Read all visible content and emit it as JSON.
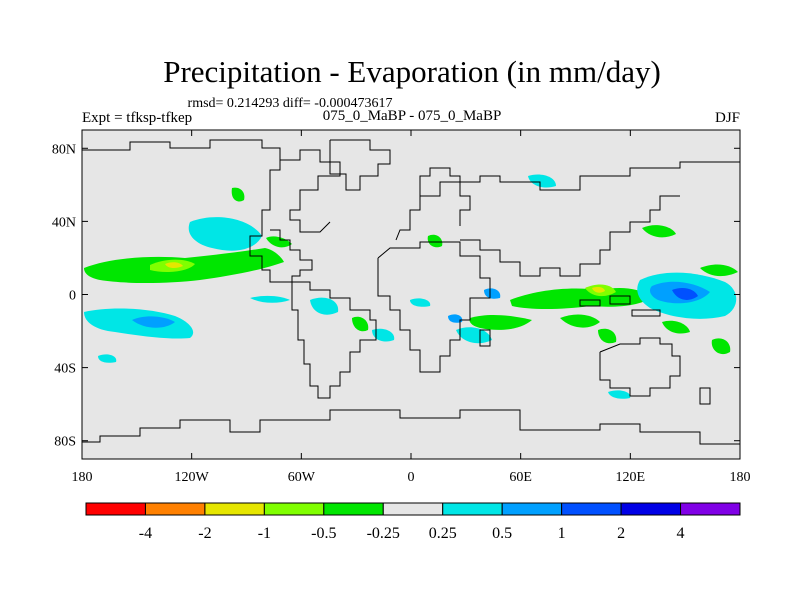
{
  "title": "Precipitation - Evaporation (in mm/day)",
  "stats_line": "rmsd= 0.214293 diff= -0.000473617",
  "left_label": "Expt = tfksp-tfkep",
  "center_label": "075_0_MaBP - 075_0_MaBP",
  "right_label": "DJF",
  "map": {
    "projection": "cylindrical-equidistant",
    "lon_range": [
      -180,
      180
    ],
    "lat_range": [
      -90,
      90
    ],
    "land_fill": "#e6e6e6",
    "coastline_color": "#000000",
    "x_ticks": [
      {
        "lon": -180,
        "label": "180"
      },
      {
        "lon": -120,
        "label": "120W"
      },
      {
        "lon": -60,
        "label": "60W"
      },
      {
        "lon": 0,
        "label": "0"
      },
      {
        "lon": 60,
        "label": "60E"
      },
      {
        "lon": 120,
        "label": "120E"
      },
      {
        "lon": 180,
        "label": "180"
      }
    ],
    "y_ticks": [
      {
        "lat": 80,
        "label": "80N"
      },
      {
        "lat": 40,
        "label": "40N"
      },
      {
        "lat": 0,
        "label": "0"
      },
      {
        "lat": -40,
        "label": "40S"
      },
      {
        "lat": -80,
        "label": "80S"
      }
    ]
  },
  "colorbar": {
    "colors": [
      "#ff0000",
      "#ff8000",
      "#e6e600",
      "#80ff00",
      "#00e600",
      "#e6e6e6",
      "#00e6e6",
      "#00a0ff",
      "#0050ff",
      "#0000e6",
      "#8000e6"
    ],
    "labels": [
      "-4",
      "-2",
      "-1",
      "-0.5",
      "-0.25",
      "0.25",
      "0.5",
      "1",
      "2",
      "4"
    ]
  }
}
